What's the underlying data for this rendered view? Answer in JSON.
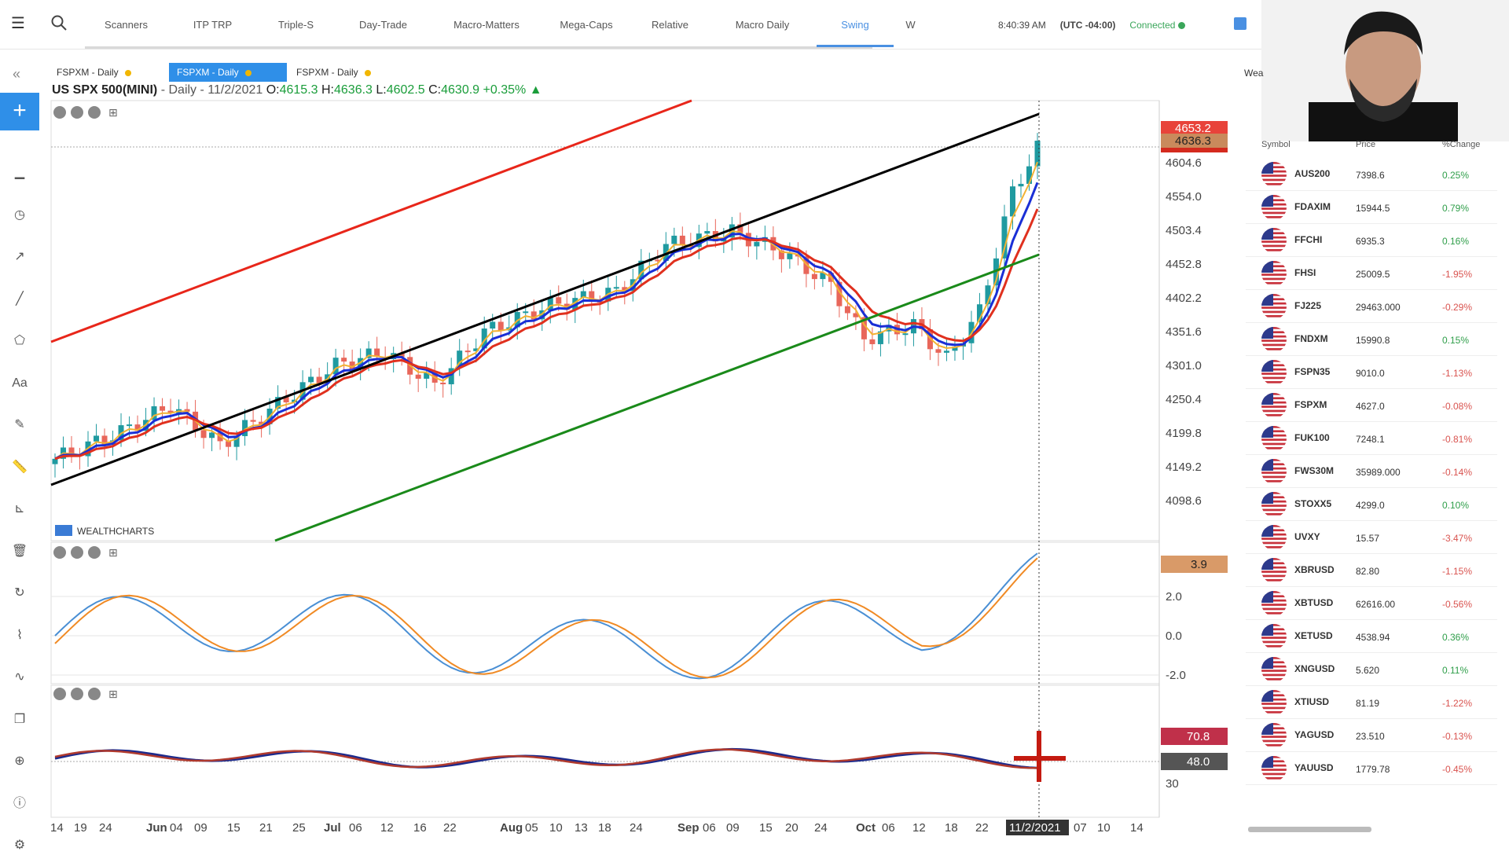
{
  "topbar": {
    "tabs": [
      {
        "label": "Scanners"
      },
      {
        "label": "ITP TRP"
      },
      {
        "label": "Triple-S"
      },
      {
        "label": "Day-Trade"
      },
      {
        "label": "Macro-Matters"
      },
      {
        "label": "Mega-Caps"
      },
      {
        "label": "Relative"
      },
      {
        "label": "Macro Daily"
      },
      {
        "label": "Swing",
        "active": true
      },
      {
        "label": "W"
      }
    ],
    "time": "8:40:39 AM",
    "timezone": "(UTC -04:00)",
    "connection": "Connected",
    "icons": [
      "menu-icon",
      "search-icon",
      "save-icon"
    ]
  },
  "chart_tabs": [
    {
      "label": "FSPXM - Daily"
    },
    {
      "label": "FSPXM - Daily",
      "active": true
    },
    {
      "label": "FSPXM - Daily"
    }
  ],
  "chart_header": {
    "symbol": "US SPX 500(MINI)",
    "interval_date": " - Daily - 11/2/2021",
    "o_label": "O:",
    "o": "4615.3",
    "h_label": "H:",
    "h": "4636.3",
    "l_label": "L:",
    "l": "4602.5",
    "c_label": "C:",
    "c": "4630.9",
    "change": "+0.35%"
  },
  "brand": "WEALTHCHARTS",
  "chart_data": {
    "type": "line",
    "title": "US SPX 500(MINI)",
    "price_axis": [
      "4604.6",
      "4554.0",
      "4503.4",
      "4452.8",
      "4402.2",
      "4351.6",
      "4301.0",
      "4250.4",
      "4199.8",
      "4149.2",
      "4098.6"
    ],
    "price_labels": {
      "high_tag": "4653.2",
      "last_tag": "4636.3"
    },
    "osc1_axis": [
      "2.0",
      "0.0",
      "-2.0"
    ],
    "osc1_value": "3.9",
    "osc2_axis": [
      "30"
    ],
    "osc2_values": [
      "70.8",
      "48.0"
    ],
    "date_labels": [
      {
        "t": "14"
      },
      {
        "t": "19"
      },
      {
        "t": "24"
      },
      {
        "t": "Jun",
        "b": true
      },
      {
        "t": "04"
      },
      {
        "t": "09"
      },
      {
        "t": "15"
      },
      {
        "t": "21"
      },
      {
        "t": "25"
      },
      {
        "t": "Jul",
        "b": true
      },
      {
        "t": "06"
      },
      {
        "t": "12"
      },
      {
        "t": "16"
      },
      {
        "t": "22"
      },
      {
        "t": "Aug",
        "b": true
      },
      {
        "t": "05"
      },
      {
        "t": "10"
      },
      {
        "t": "13"
      },
      {
        "t": "18"
      },
      {
        "t": "24"
      },
      {
        "t": "Sep",
        "b": true
      },
      {
        "t": "06"
      },
      {
        "t": "09"
      },
      {
        "t": "15"
      },
      {
        "t": "20"
      },
      {
        "t": "24"
      },
      {
        "t": "Oct",
        "b": true
      },
      {
        "t": "06"
      },
      {
        "t": "12"
      },
      {
        "t": "18"
      },
      {
        "t": "22"
      },
      {
        "t": "11/2/2021",
        "cur": true
      },
      {
        "t": "07"
      },
      {
        "t": "10"
      },
      {
        "t": "14"
      }
    ],
    "colors": {
      "up": "#1f9aa0",
      "down": "#e8665a",
      "ema_fast": "#f2b233",
      "ema_blue": "#1a2fd6",
      "ema_red": "#e0301e",
      "trend_red": "#e8261a",
      "trend_black": "#000000",
      "trend_green": "#1a8a1a",
      "osc_blue": "#4a8fd4",
      "osc_orange": "#f08a24",
      "rsi_navy": "#1c2a8c",
      "rsi_red": "#b03a2e"
    }
  },
  "watchlist": {
    "headers": {
      "symbol": "Symbol",
      "price": "Price",
      "change": "%Change"
    },
    "rows": [
      {
        "sym": "AUS200",
        "price": "7398.6",
        "chg": "0.25%",
        "up": true
      },
      {
        "sym": "FDAXIM",
        "price": "15944.5",
        "chg": "0.79%",
        "up": true
      },
      {
        "sym": "FFCHI",
        "price": "6935.3",
        "chg": "0.16%",
        "up": true
      },
      {
        "sym": "FHSI",
        "price": "25009.5",
        "chg": "-1.95%",
        "up": false
      },
      {
        "sym": "FJ225",
        "price": "29463.000",
        "chg": "-0.29%",
        "up": false
      },
      {
        "sym": "FNDXM",
        "price": "15990.8",
        "chg": "0.15%",
        "up": true
      },
      {
        "sym": "FSPN35",
        "price": "9010.0",
        "chg": "-1.13%",
        "up": false
      },
      {
        "sym": "FSPXM",
        "price": "4627.0",
        "chg": "-0.08%",
        "up": false
      },
      {
        "sym": "FUK100",
        "price": "7248.1",
        "chg": "-0.81%",
        "up": false
      },
      {
        "sym": "FWS30M",
        "price": "35989.000",
        "chg": "-0.14%",
        "up": false
      },
      {
        "sym": "STOXX5",
        "price": "4299.0",
        "chg": "0.10%",
        "up": true
      },
      {
        "sym": "UVXY",
        "price": "15.57",
        "chg": "-3.47%",
        "up": false
      },
      {
        "sym": "XBRUSD",
        "price": "82.80",
        "chg": "-1.15%",
        "up": false
      },
      {
        "sym": "XBTUSD",
        "price": "62616.00",
        "chg": "-0.56%",
        "up": false
      },
      {
        "sym": "XETUSD",
        "price": "4538.94",
        "chg": "0.36%",
        "up": true
      },
      {
        "sym": "XNGUSD",
        "price": "5.620",
        "chg": "0.11%",
        "up": true
      },
      {
        "sym": "XTIUSD",
        "price": "81.19",
        "chg": "-1.22%",
        "up": false
      },
      {
        "sym": "YAGUSD",
        "price": "23.510",
        "chg": "-0.13%",
        "up": false
      },
      {
        "sym": "YAUUSD",
        "price": "1779.78",
        "chg": "-0.45%",
        "up": false
      }
    ],
    "panel_title_partial": "Wea"
  }
}
